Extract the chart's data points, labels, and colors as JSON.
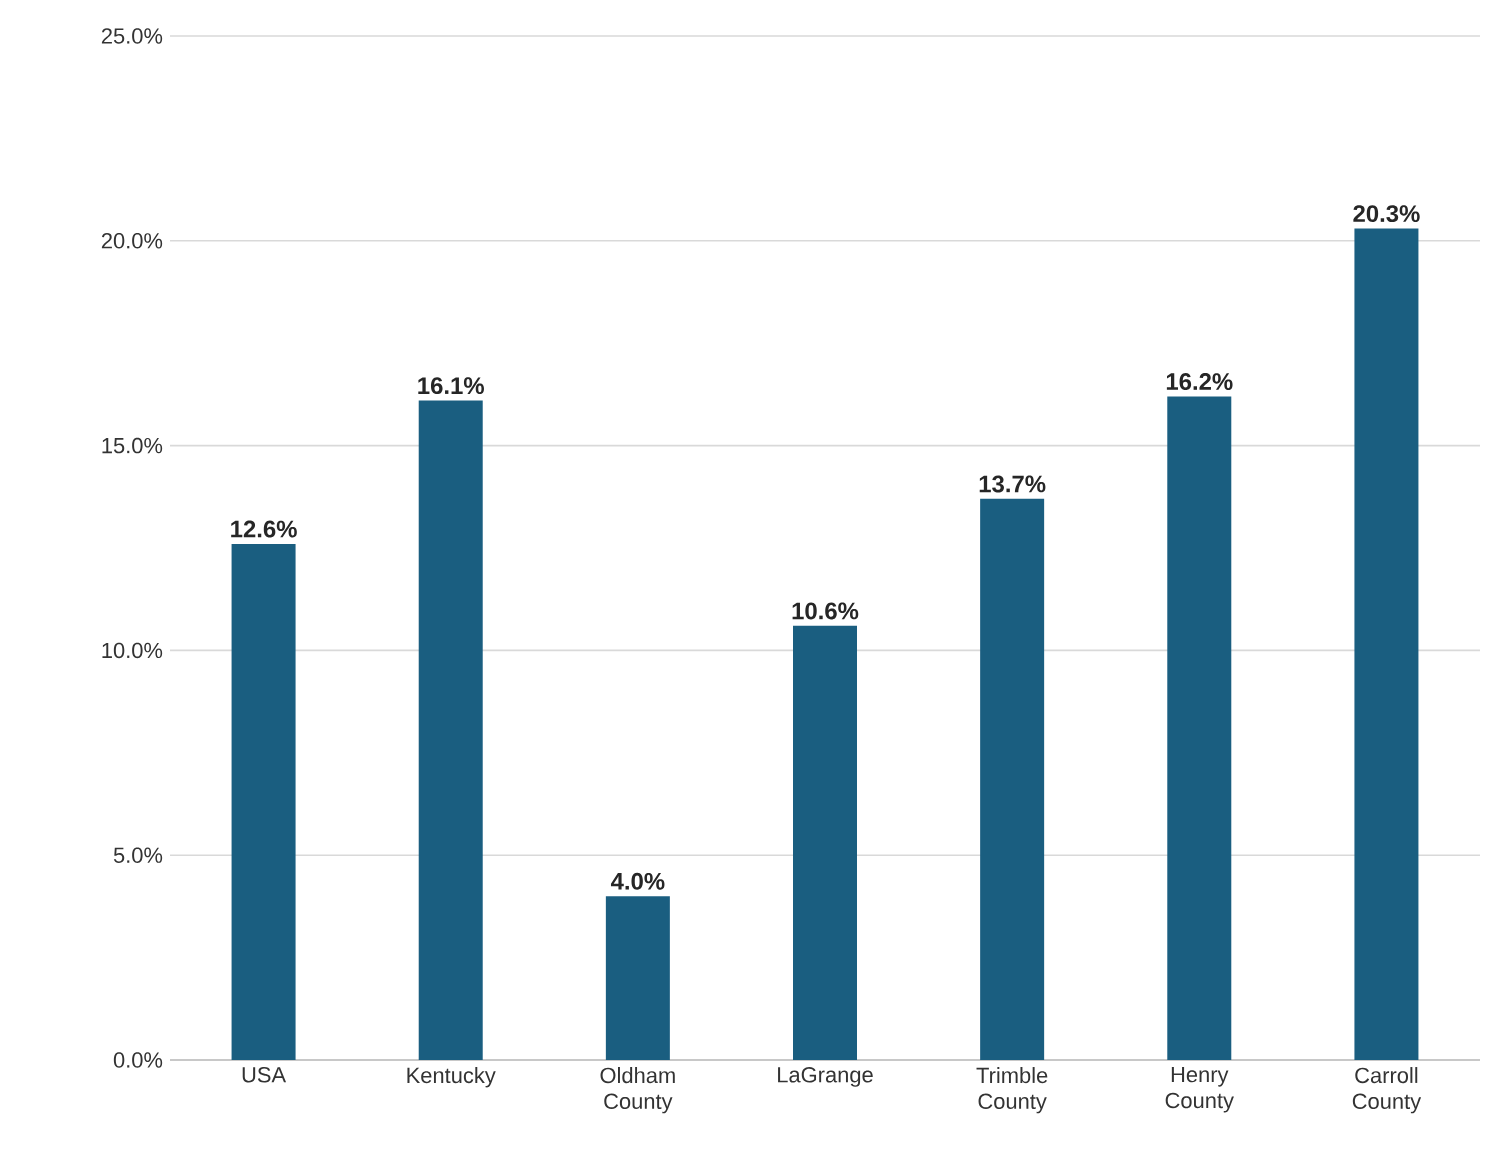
{
  "chart_data": {
    "type": "bar",
    "categories": [
      "USA",
      "Kentucky",
      "Oldham County",
      "LaGrange",
      "Trimble County",
      "Henry County",
      "Carroll County"
    ],
    "values": [
      12.6,
      16.1,
      4.0,
      10.6,
      13.7,
      16.2,
      20.3
    ],
    "value_labels": [
      "12.6%",
      "16.1%",
      "4.0%",
      "10.6%",
      "13.7%",
      "16.2%",
      "20.3%"
    ],
    "color": "#1a5e80",
    "ylim": [
      0,
      25
    ],
    "yticks": [
      {
        "value": 0,
        "label": "0.0%"
      },
      {
        "value": 5,
        "label": "5.0%"
      },
      {
        "value": 10,
        "label": "10.0%"
      },
      {
        "value": 15,
        "label": "15.0%"
      },
      {
        "value": 20,
        "label": "20.0%"
      },
      {
        "value": 25,
        "label": "25.0%"
      }
    ],
    "grid": "y"
  }
}
